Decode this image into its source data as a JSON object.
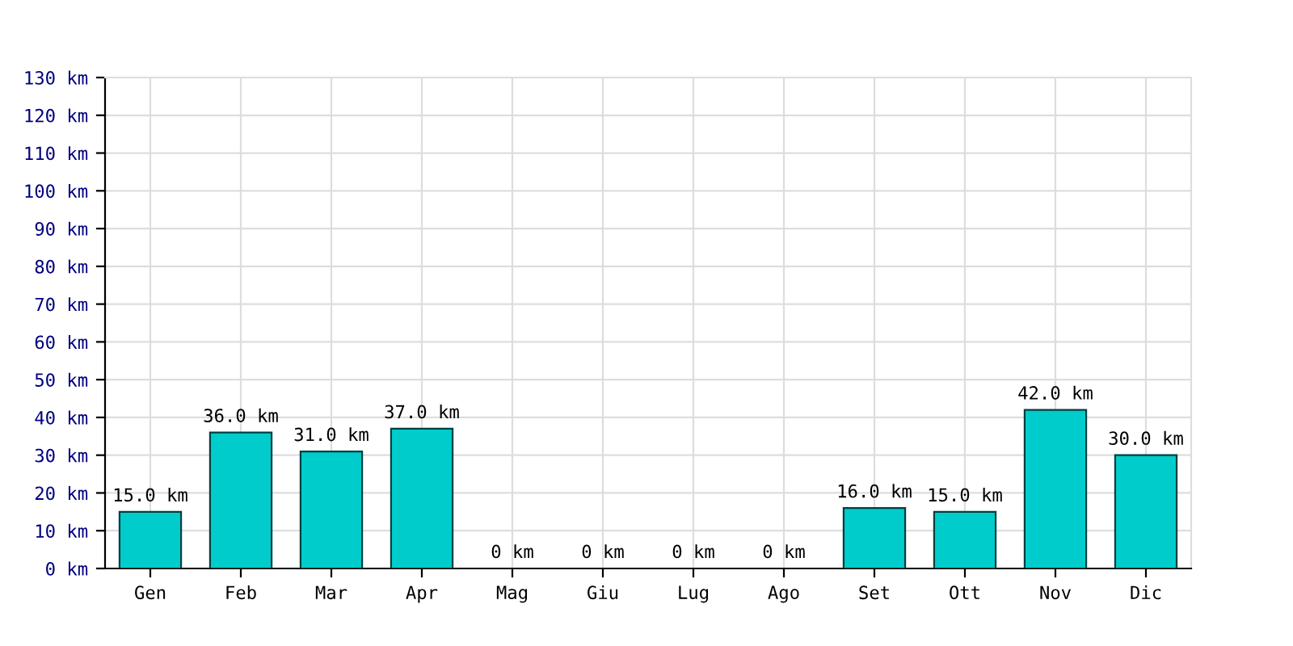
{
  "chart_data": {
    "type": "bar",
    "categories": [
      "Gen",
      "Feb",
      "Mar",
      "Apr",
      "Mag",
      "Giu",
      "Lug",
      "Ago",
      "Set",
      "Ott",
      "Nov",
      "Dic"
    ],
    "values": [
      15,
      36,
      31,
      37,
      0,
      0,
      0,
      0,
      16,
      15,
      42,
      30
    ],
    "value_labels": [
      "15.0 km",
      "36.0 km",
      "31.0 km",
      "37.0 km",
      "0 km",
      "0 km",
      "0 km",
      "0 km",
      "16.0 km",
      "15.0 km",
      "42.0 km",
      "30.0 km"
    ],
    "color": "#00cccc",
    "ylim": [
      0,
      130
    ],
    "yticks": [
      {
        "value": 0,
        "label": "0 km"
      },
      {
        "value": 10,
        "label": "10 km"
      },
      {
        "value": 20,
        "label": "20 km"
      },
      {
        "value": 30,
        "label": "30 km"
      },
      {
        "value": 40,
        "label": "40 km"
      },
      {
        "value": 50,
        "label": "50 km"
      },
      {
        "value": 60,
        "label": "60 km"
      },
      {
        "value": 70,
        "label": "70 km"
      },
      {
        "value": 80,
        "label": "80 km"
      },
      {
        "value": 90,
        "label": "90 km"
      },
      {
        "value": 100,
        "label": "100 km"
      },
      {
        "value": 110,
        "label": "110 km"
      },
      {
        "value": 120,
        "label": "120 km"
      },
      {
        "value": 130,
        "label": "130 km"
      }
    ],
    "grid": true
  }
}
